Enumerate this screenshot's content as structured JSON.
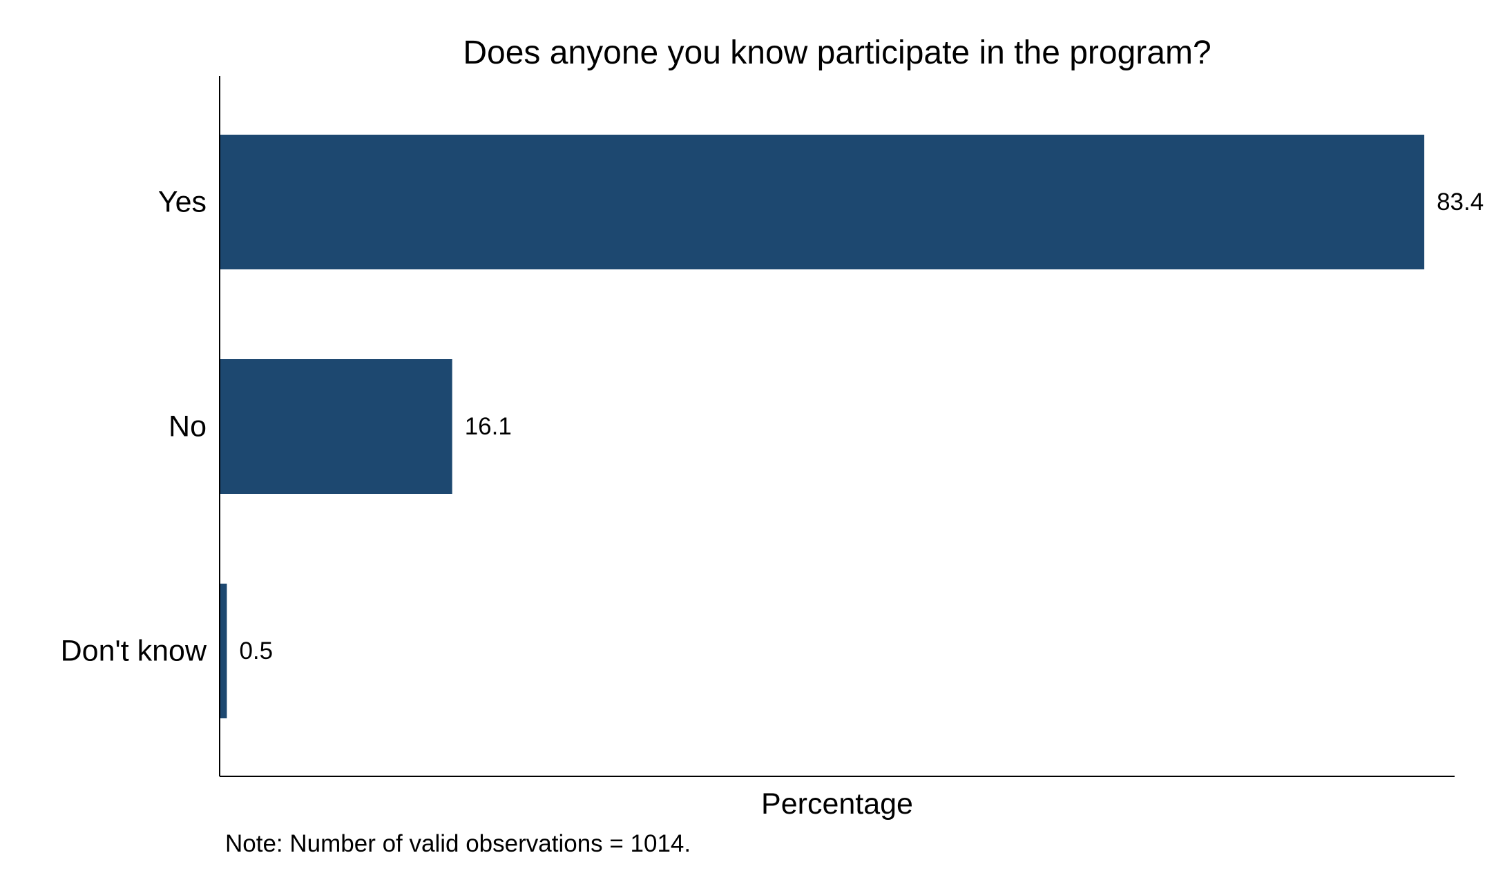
{
  "chart_data": {
    "type": "bar",
    "orientation": "horizontal",
    "title": "Does anyone you know participate in the program?",
    "xlabel": "Percentage",
    "ylabel": "",
    "categories": [
      "Yes",
      "No",
      "Don't know"
    ],
    "values": [
      83.4,
      16.1,
      0.5
    ],
    "value_labels": [
      "83.4",
      "16.1",
      "0.5"
    ],
    "xlim": [
      0,
      85.5
    ],
    "grid": false,
    "legend": "none",
    "bar_color": "#1d4870",
    "note": "Note: Number of valid observations = 1014."
  }
}
